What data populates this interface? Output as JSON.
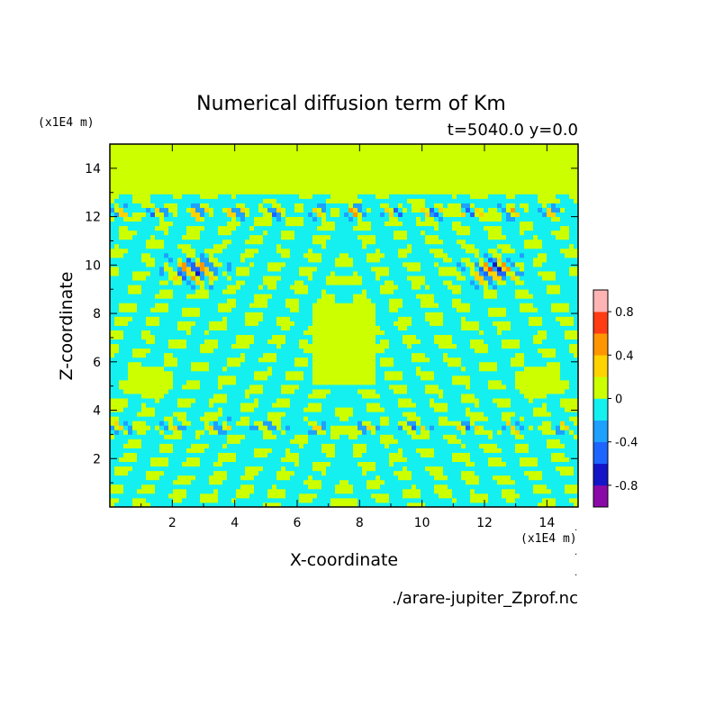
{
  "chart_data": {
    "type": "heatmap",
    "title": "Numerical diffusion term of Km",
    "subtitle": "t=5040.0 y=0.0",
    "xlabel": "X-coordinate",
    "ylabel": "Z-coordinate",
    "x_unit": "(x1E4 m)",
    "y_unit": "(x1E4 m)",
    "xlim": [
      0,
      15
    ],
    "ylim": [
      0,
      15
    ],
    "x_ticks": [
      "2",
      "4",
      "6",
      "8",
      "10",
      "12",
      "14"
    ],
    "y_ticks": [
      "2",
      "4",
      "6",
      "8",
      "10",
      "12",
      "14"
    ],
    "source_file": "./arare-jupiter_Zprof.nc",
    "colorbar": {
      "levels": [
        -1.0,
        -0.8,
        -0.6,
        -0.4,
        -0.2,
        0,
        0.2,
        0.4,
        0.6,
        0.8,
        1.0
      ],
      "colors": [
        "#8a0aa8",
        "#1414c8",
        "#1e64ff",
        "#1ea0ff",
        "#14f0f0",
        "#ccff00",
        "#ffd200",
        "#ff9600",
        "#ff3c14",
        "#ffb4b4"
      ],
      "tick_labels": [
        "0.8",
        "0.4",
        "0",
        "-0.4",
        "-0.8"
      ]
    },
    "background_value_above_z13": 0,
    "note_levels": "field dominated by small-amplitude values near 0 with banded structure"
  }
}
